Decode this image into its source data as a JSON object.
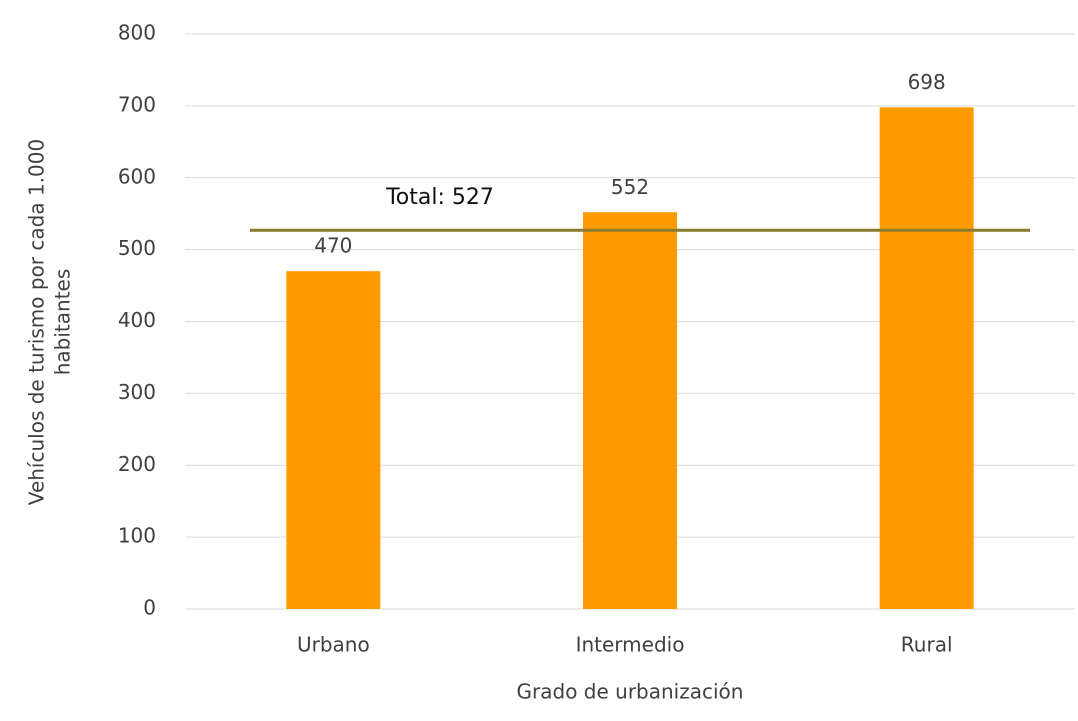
{
  "chart_data": {
    "type": "bar",
    "xlabel": "Grado de urbanización",
    "ylabel": [
      "Vehículos de turismo por cada 1.000",
      "habitantes"
    ],
    "categories": [
      "Urbano",
      "Intermedio",
      "Rural"
    ],
    "values": [
      470,
      552,
      698
    ],
    "color": "#ff9a00",
    "ylim": [
      0,
      800
    ],
    "yticks": [
      0,
      100,
      200,
      300,
      400,
      500,
      600,
      700,
      800
    ],
    "grid": true,
    "reference_line": {
      "value": 527,
      "label": "Total: 527",
      "color": "#8a7a2c"
    }
  }
}
